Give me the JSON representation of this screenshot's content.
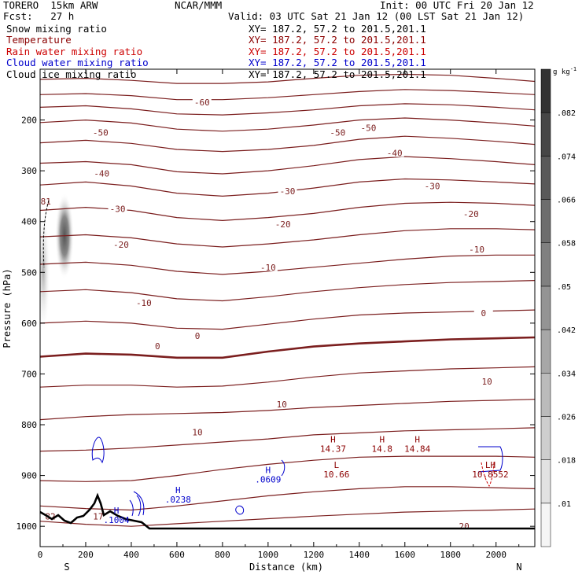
{
  "header": {
    "model": "TORERO  15km ARW",
    "org": "NCAR/MMM",
    "init": "Init: 00 UTC Fri 20 Jan 12",
    "fcst": "Fcst:   27 h",
    "valid": "Valid: 03 UTC Sat 21 Jan 12 (00 LST Sat 21 Jan 12)"
  },
  "legend": [
    {
      "label": "Snow mixing ratio",
      "xy": "XY= 187.2, 57.2 to 201.5,201.1",
      "color": "#000000"
    },
    {
      "label": "Temperature",
      "xy": "XY= 187.2, 57.2 to 201.5,201.1",
      "color": "#8b0000"
    },
    {
      "label": "Rain water mixing ratio",
      "xy": "XY= 187.2, 57.2 to 201.5,201.1",
      "color": "#cc0000"
    },
    {
      "label": "Cloud water mixing ratio",
      "xy": "XY= 187.2, 57.2 to 201.5,201.1",
      "color": "#0000cc"
    },
    {
      "label": "Cloud ice mixing ratio",
      "xy": "XY= 187.2, 57.2 to 201.5,201.1",
      "color": "#000000"
    }
  ],
  "chart_data": {
    "type": "cross-section contour",
    "xlabel": "Distance (km)",
    "ylabel": "Pressure (hPa)",
    "xlim": [
      0,
      2170
    ],
    "ylim": [
      1040,
      100
    ],
    "x_ticks": [
      "0",
      "200",
      "400",
      "600",
      "800",
      "1000",
      "1200",
      "1400",
      "1600",
      "1800",
      "2000"
    ],
    "y_ticks": [
      "200",
      "300",
      "400",
      "500",
      "600",
      "700",
      "800",
      "900",
      "1000"
    ],
    "x_end_labels": [
      "S",
      "N"
    ],
    "colorbar": {
      "unit": "g kg",
      "unit_exp": "-1",
      "ticks": [
        ".01",
        ".018",
        ".026",
        ".034",
        ".042",
        ".05",
        ".058",
        ".066",
        ".074",
        ".082"
      ]
    },
    "temperature_labels": [
      {
        "text": "-60",
        "x": 710,
        "p": 165
      },
      {
        "text": "-50",
        "x": 265,
        "p": 225
      },
      {
        "text": "-50",
        "x": 1305,
        "p": 225
      },
      {
        "text": "-50",
        "x": 1440,
        "p": 215
      },
      {
        "text": "-40",
        "x": 270,
        "p": 305
      },
      {
        "text": "-40",
        "x": 1555,
        "p": 265
      },
      {
        "text": "-30",
        "x": 340,
        "p": 375
      },
      {
        "text": "-30",
        "x": 1085,
        "p": 340
      },
      {
        "text": "-30",
        "x": 1720,
        "p": 330
      },
      {
        "text": "-20",
        "x": 355,
        "p": 445
      },
      {
        "text": "-20",
        "x": 1065,
        "p": 405
      },
      {
        "text": "-20",
        "x": 1890,
        "p": 385
      },
      {
        "text": "-10",
        "x": 455,
        "p": 560
      },
      {
        "text": "-10",
        "x": 1000,
        "p": 490
      },
      {
        "text": "-10",
        "x": 1915,
        "p": 455
      },
      {
        "text": "0",
        "x": 515,
        "p": 645
      },
      {
        "text": "0",
        "x": 690,
        "p": 625
      },
      {
        "text": "0",
        "x": 1945,
        "p": 580
      },
      {
        "text": "10",
        "x": 690,
        "p": 815
      },
      {
        "text": "10",
        "x": 1060,
        "p": 760
      },
      {
        "text": "10",
        "x": 1960,
        "p": 715
      },
      {
        "text": "20",
        "x": 1860,
        "p": 1000
      },
      {
        "text": "17",
        "x": 255,
        "p": 980
      },
      {
        "text": "82",
        "x": 45,
        "p": 980
      },
      {
        "text": "81",
        "x": 25,
        "p": 360
      }
    ],
    "extrema": [
      {
        "mark": "H",
        "value": "14.37",
        "x": 1285,
        "p": 835,
        "color": "#8b0000"
      },
      {
        "mark": "H",
        "value": "14.8",
        "x": 1500,
        "p": 835,
        "color": "#8b0000"
      },
      {
        "mark": "H",
        "value": "14.84",
        "x": 1655,
        "p": 835,
        "color": "#8b0000"
      },
      {
        "mark": "L",
        "value": "10.66",
        "x": 1300,
        "p": 885,
        "color": "#8b0000"
      },
      {
        "mark": "H",
        "value": ".0609",
        "x": 1000,
        "p": 895,
        "color": "#0000cc"
      },
      {
        "mark": "H",
        "value": ".0238",
        "x": 605,
        "p": 935,
        "color": "#0000cc"
      },
      {
        "mark": "LH",
        "value": "10.8552",
        "x": 1975,
        "p": 885,
        "color": "#8b0000"
      },
      {
        "mark": "H",
        "value": ".1004",
        "x": 335,
        "p": 975,
        "color": "#0000cc"
      }
    ]
  }
}
